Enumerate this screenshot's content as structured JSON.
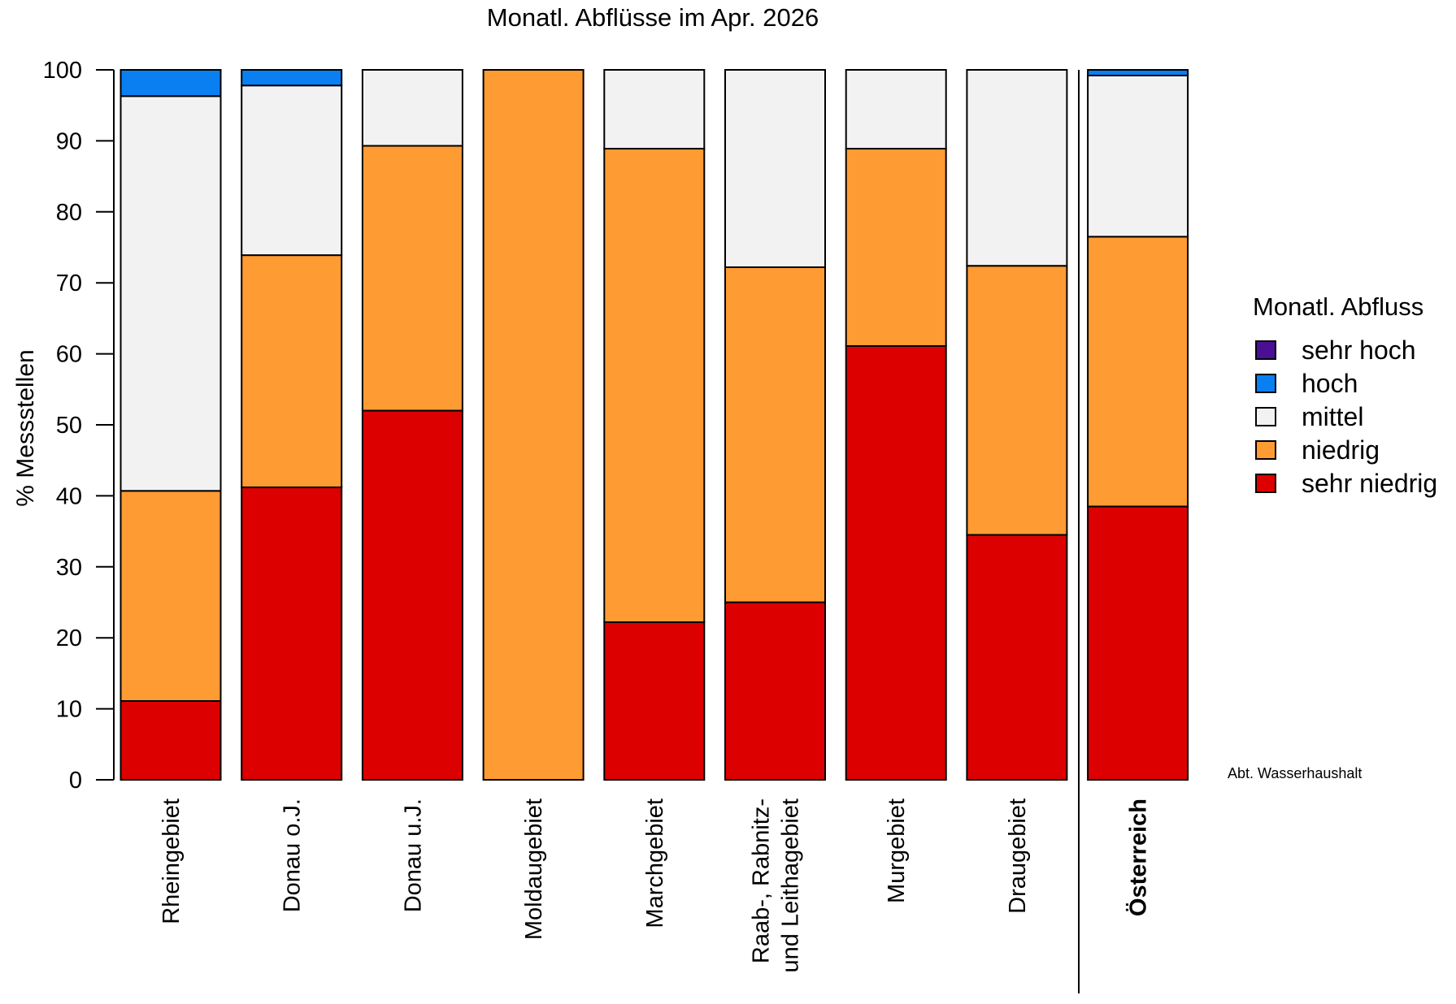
{
  "chart_data": {
    "type": "bar",
    "stacked": true,
    "title": "Monatl. Abflüsse im Apr. 2026",
    "ylabel": "% Messstellen",
    "xlabel": "",
    "ylim": [
      0,
      100
    ],
    "yticks": [
      0,
      10,
      20,
      30,
      40,
      50,
      60,
      70,
      80,
      90,
      100
    ],
    "categories": [
      "Rheingebiet",
      "Donau o.J.",
      "Donau u.J.",
      "Moldaugebiet",
      "Marchgebiet",
      "Raab-, Rabnitz-\nund Leithagebiet",
      "Murgebiet",
      "Draugebiet",
      "Österreich"
    ],
    "emphasized_category": "Österreich",
    "series": [
      {
        "name": "sehr niedrig",
        "color": "#dd0000",
        "values": [
          11.1,
          41.2,
          52.0,
          0.0,
          22.2,
          25.0,
          61.1,
          34.5,
          38.5
        ]
      },
      {
        "name": "niedrig",
        "color": "#ff9b33",
        "values": [
          29.6,
          32.7,
          37.3,
          100.0,
          66.7,
          47.2,
          27.8,
          37.9,
          38.0
        ]
      },
      {
        "name": "mittel",
        "color": "#f2f2f2",
        "values": [
          55.6,
          23.9,
          10.7,
          0.0,
          11.1,
          27.8,
          11.1,
          27.6,
          22.7
        ]
      },
      {
        "name": "hoch",
        "color": "#0a7ff2",
        "values": [
          3.7,
          2.2,
          0.0,
          0.0,
          0.0,
          0.0,
          0.0,
          0.0,
          0.8
        ]
      },
      {
        "name": "sehr hoch",
        "color": "#4b0f96",
        "values": [
          0,
          0,
          0,
          0,
          0,
          0,
          0,
          0,
          0
        ]
      }
    ],
    "legend": {
      "title": "Monatl. Abfluss",
      "position": "right",
      "items": [
        "sehr hoch",
        "hoch",
        "mittel",
        "niedrig",
        "sehr niedrig"
      ]
    },
    "grid": false,
    "annotation": "Abt. Wasserhaushalt"
  }
}
